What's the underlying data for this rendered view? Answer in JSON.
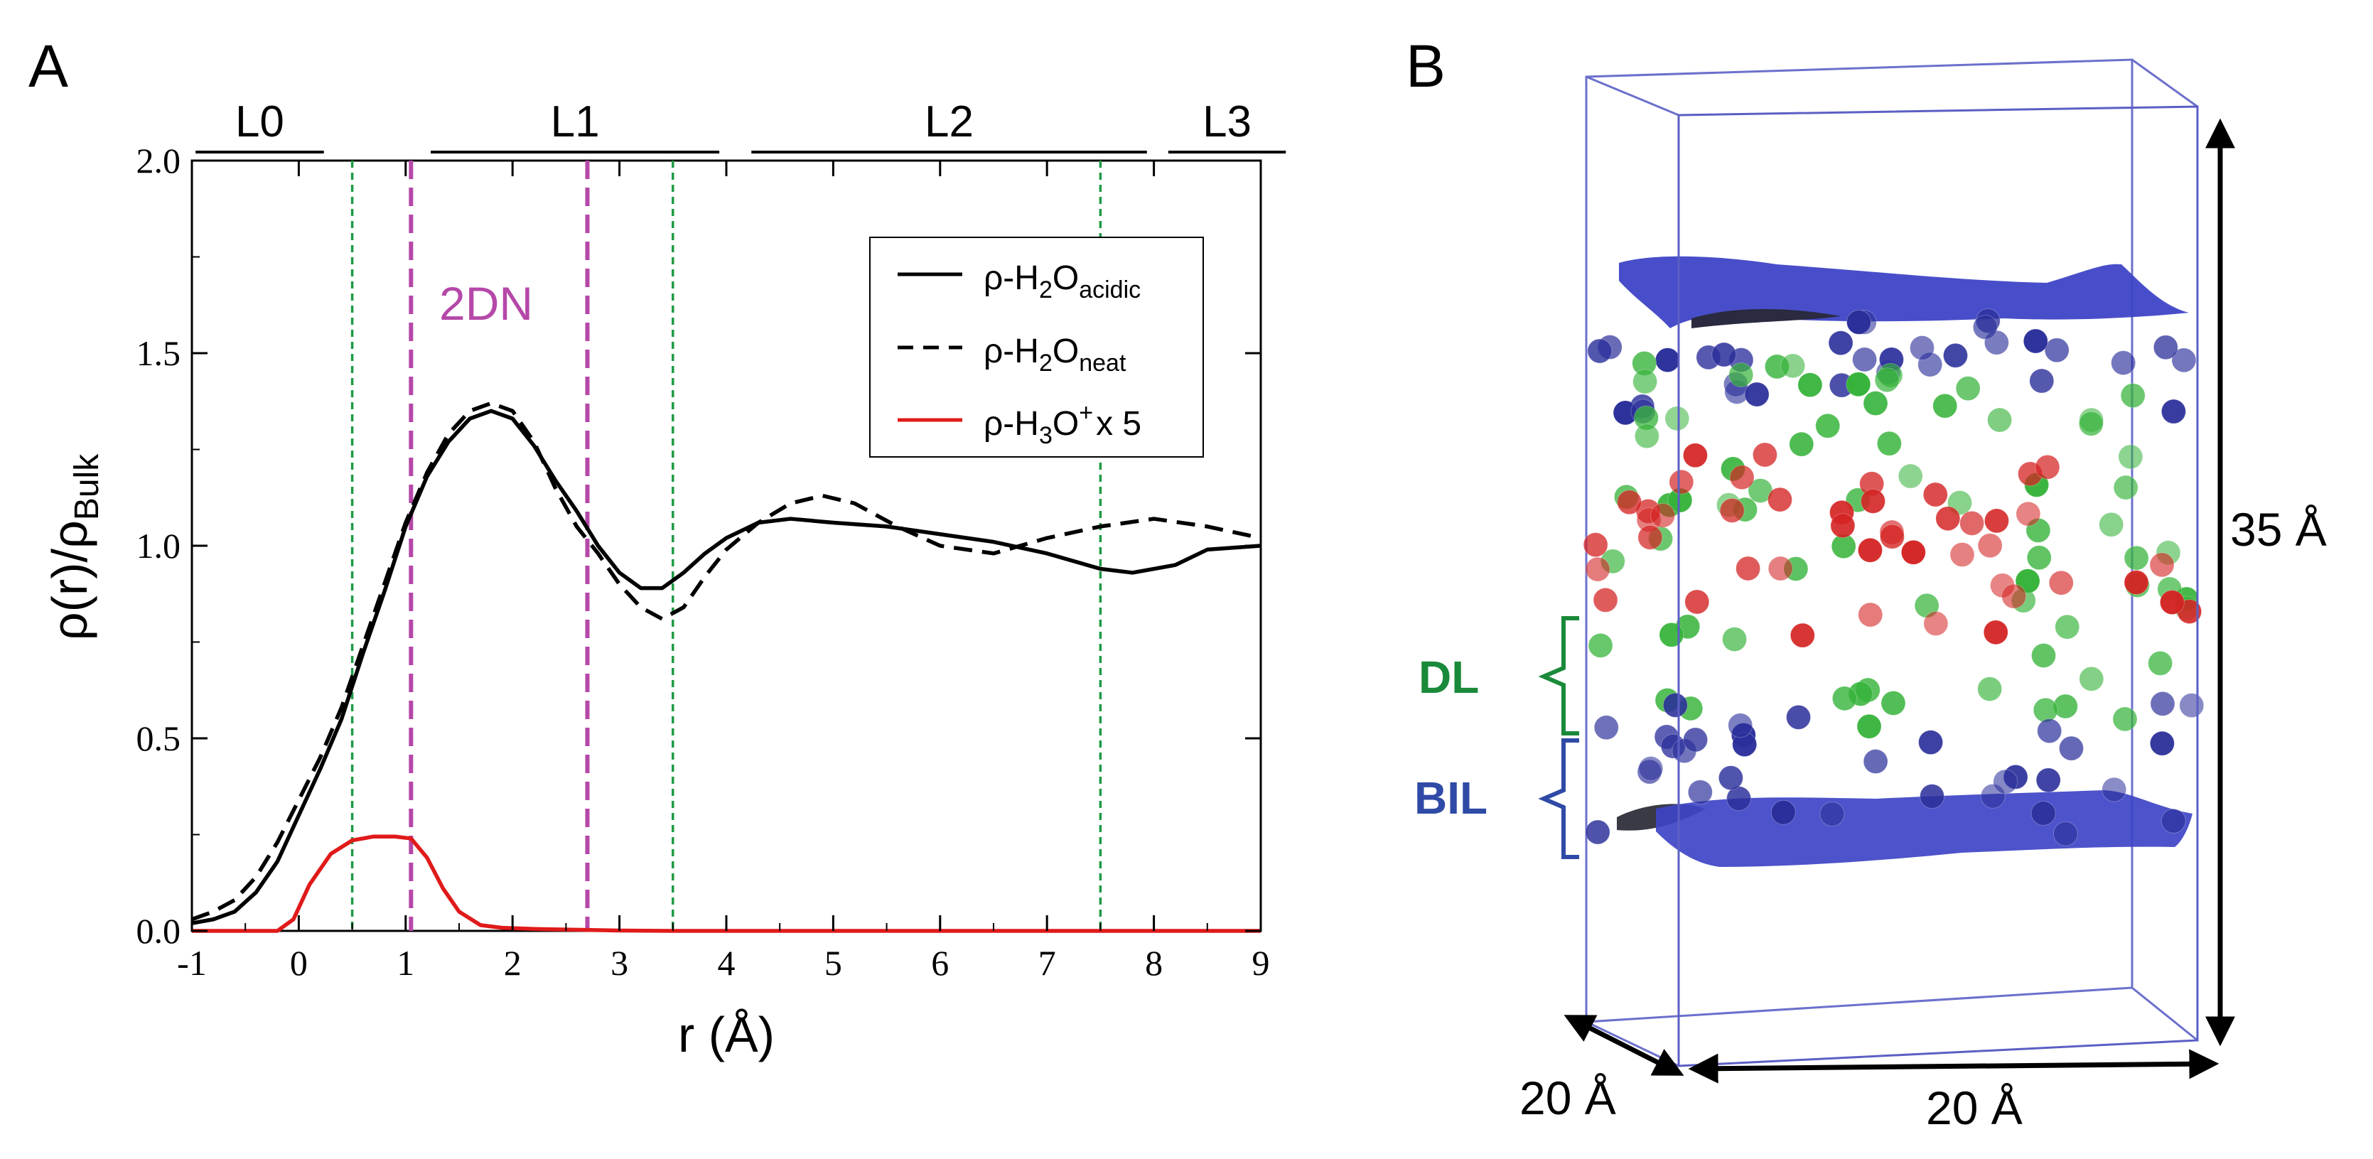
{
  "panel_a": {
    "label": "A",
    "layer_labels": [
      "L0",
      "L1",
      "L2",
      "L3"
    ],
    "annotation_2dn": "2DN",
    "legend": {
      "acidic": {
        "prefix": "ρ-H",
        "sub1": "2",
        "mid": "O",
        "sub2": "acidic"
      },
      "neat": {
        "prefix": "ρ-H",
        "sub1": "2",
        "mid": "O",
        "sub2": "neat"
      },
      "hydronium": {
        "prefix": "ρ-H",
        "sub1": "3",
        "mid": "O",
        "sup": "+",
        "suffix": "x 5"
      }
    },
    "ylabel": {
      "a": "ρ(r)/ρ",
      "sub": "Bulk"
    },
    "xlabel": "r (Å)"
  },
  "panel_b": {
    "label": "B",
    "height_label": "35 Å",
    "width_label": "20 Å",
    "depth_label": "20 Å",
    "dl_label": "DL",
    "bil_label": "BIL",
    "colors": {
      "box": "#5b5fc4",
      "blue_atom": "#2b2f9a",
      "green_atom": "#36b33a",
      "red_atom": "#d42323",
      "surface": "#3e44c6",
      "dl": "#1a8a3a",
      "bil": "#2f4aa6"
    }
  },
  "chart_data": {
    "type": "line",
    "xlabel": "r (Å)",
    "ylabel": "ρ(r)/ρBulk",
    "xlim": [
      -1,
      9
    ],
    "ylim": [
      0,
      2
    ],
    "xticks": [
      "-1",
      "0",
      "1",
      "2",
      "3",
      "4",
      "5",
      "6",
      "7",
      "8",
      "9"
    ],
    "yticks": [
      "0.0",
      "0.5",
      "1.0",
      "1.5",
      "2.0"
    ],
    "grid": false,
    "legend_position": "top-right",
    "series": [
      {
        "name": "ρ-H2O acidic",
        "color": "#000000",
        "style": "solid",
        "x": [
          -1,
          -0.8,
          -0.6,
          -0.4,
          -0.2,
          0,
          0.2,
          0.4,
          0.6,
          0.8,
          1,
          1.2,
          1.4,
          1.6,
          1.8,
          2,
          2.2,
          2.4,
          2.6,
          2.8,
          3,
          3.2,
          3.4,
          3.6,
          3.8,
          4,
          4.3,
          4.6,
          5,
          5.5,
          6,
          6.5,
          7,
          7.5,
          7.8,
          8.2,
          8.5,
          9
        ],
        "y": [
          0.02,
          0.03,
          0.05,
          0.1,
          0.18,
          0.3,
          0.42,
          0.55,
          0.72,
          0.88,
          1.05,
          1.18,
          1.27,
          1.33,
          1.35,
          1.33,
          1.26,
          1.17,
          1.09,
          1.0,
          0.93,
          0.89,
          0.89,
          0.93,
          0.98,
          1.02,
          1.06,
          1.07,
          1.06,
          1.05,
          1.03,
          1.01,
          0.98,
          0.94,
          0.93,
          0.95,
          0.99,
          1.0
        ]
      },
      {
        "name": "ρ-H2O neat",
        "color": "#000000",
        "style": "dashed",
        "x": [
          -1,
          -0.8,
          -0.6,
          -0.4,
          -0.2,
          0,
          0.2,
          0.4,
          0.6,
          0.8,
          1,
          1.2,
          1.4,
          1.6,
          1.8,
          2,
          2.2,
          2.4,
          2.6,
          2.8,
          3,
          3.2,
          3.4,
          3.6,
          3.8,
          4,
          4.3,
          4.6,
          4.9,
          5.2,
          5.6,
          6,
          6.5,
          7,
          7.5,
          8,
          8.5,
          9
        ],
        "y": [
          0.03,
          0.05,
          0.08,
          0.14,
          0.23,
          0.34,
          0.45,
          0.58,
          0.74,
          0.9,
          1.06,
          1.19,
          1.29,
          1.35,
          1.37,
          1.35,
          1.27,
          1.15,
          1.05,
          0.98,
          0.9,
          0.84,
          0.81,
          0.84,
          0.92,
          0.99,
          1.06,
          1.11,
          1.13,
          1.11,
          1.05,
          1.0,
          0.98,
          1.02,
          1.05,
          1.07,
          1.05,
          1.02
        ]
      },
      {
        "name": "ρ-H3O+ x 5",
        "color": "#e01a1a",
        "style": "solid",
        "x": [
          -1,
          -0.2,
          -0.05,
          0.1,
          0.3,
          0.5,
          0.7,
          0.9,
          1.05,
          1.2,
          1.35,
          1.5,
          1.7,
          1.9,
          2.2,
          2.6,
          3,
          3.5,
          9
        ],
        "y": [
          0.0,
          0.0,
          0.03,
          0.12,
          0.2,
          0.235,
          0.245,
          0.245,
          0.24,
          0.19,
          0.11,
          0.05,
          0.015,
          0.008,
          0.005,
          0.003,
          0.001,
          0.0,
          0.0
        ]
      }
    ],
    "vlines": [
      {
        "x": 0.5,
        "color": "#1f9a45",
        "style": "dotted"
      },
      {
        "x": 3.5,
        "color": "#1f9a45",
        "style": "dotted"
      },
      {
        "x": 7.5,
        "color": "#1f9a45",
        "style": "dotted"
      },
      {
        "x": 1.05,
        "color": "#b548a8",
        "style": "dashed"
      },
      {
        "x": 2.7,
        "color": "#b548a8",
        "style": "dashed"
      }
    ],
    "layer_bars": [
      {
        "label": "L0",
        "x_start": -0.5,
        "x_end": 0.7
      },
      {
        "label": "L1",
        "x_start": 1.7,
        "x_end": 4.4
      },
      {
        "label": "L2",
        "x_start": 4.7,
        "x_end": 8.4
      },
      {
        "label": "L3",
        "x_start": 8.6,
        "x_end": 9.7
      }
    ]
  }
}
